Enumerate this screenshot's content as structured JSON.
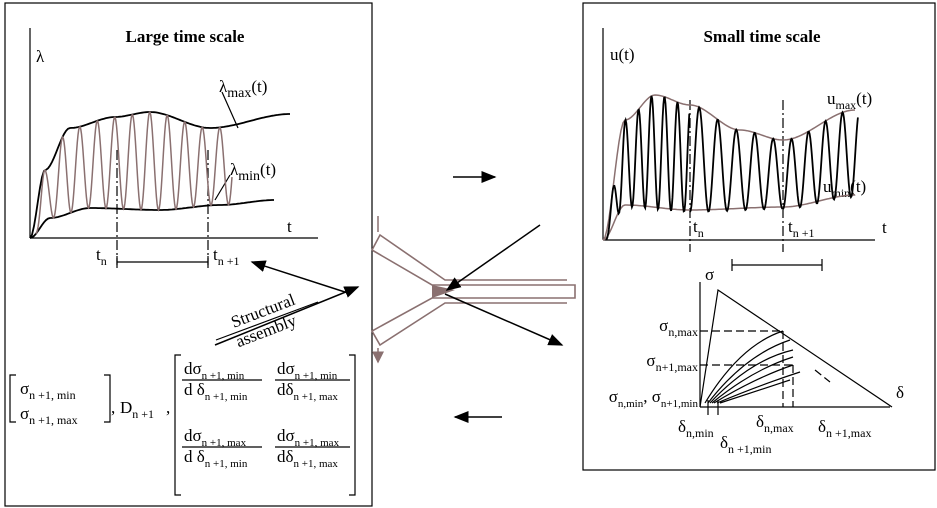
{
  "left_panel": {
    "title": "Large time scale",
    "y_label": "λ",
    "x_label": "t",
    "lambda_max": {
      "base": "λ",
      "sub": "max",
      "rest": "(t)"
    },
    "lambda_min": {
      "base": "λ",
      "sub": "min",
      "rest": "(t)"
    },
    "t_n": {
      "base": "t",
      "sub": "n"
    },
    "t_n1": {
      "base": "t",
      "sub": "n +1"
    }
  },
  "assembly": {
    "line1": "Structural",
    "line2": "assembly"
  },
  "matrix": {
    "s_min": {
      "base": "σ",
      "sub": "n +1, min"
    },
    "s_max": {
      "base": "σ",
      "sub": "n +1, max"
    },
    "sep1": ",",
    "D": {
      "base": "D",
      "sub": "n +1"
    },
    "sep2": ",",
    "f11": {
      "num": {
        "base": "dσ",
        "sub": "n +1, min"
      },
      "den": {
        "base": "d δ",
        "sub": "n +1, min"
      }
    },
    "f12": {
      "num": {
        "base": "dσ",
        "sub": "n +1, min"
      },
      "den": {
        "base": "dδ",
        "sub": "n +1, max"
      }
    },
    "f21": {
      "num": {
        "base": "dσ",
        "sub": "n +1, max"
      },
      "den": {
        "base": "d δ",
        "sub": "n +1, min"
      }
    },
    "f22": {
      "num": {
        "base": "dσ",
        "sub": "n +1, max"
      },
      "den": {
        "base": "dδ",
        "sub": "n +1, max"
      }
    }
  },
  "right_panel": {
    "title": "Small time scale",
    "y_label": "u(t)",
    "x_label": "t",
    "u_max": {
      "base": "u",
      "sub": "max",
      "rest": "(t)"
    },
    "u_min": {
      "base": "u",
      "sub": "min",
      "rest": "(t)"
    },
    "t_n": {
      "base": "t",
      "sub": "n"
    },
    "t_n1": {
      "base": "t",
      "sub": "n +1"
    }
  },
  "traction": {
    "y_label": "σ",
    "x_label": "δ",
    "sigma_n_max": {
      "base": "σ",
      "sub": "n,max"
    },
    "sigma_n1_max": {
      "base": "σ",
      "sub": "n+1,max"
    },
    "sigma_min": {
      "base1": "σ",
      "sub1": "n,min",
      "sep": ", ",
      "base2": "σ",
      "sub2": "n+1,min"
    },
    "delta_n_min": {
      "base": "δ",
      "sub": "n,min"
    },
    "delta_n1_min": {
      "base": "δ",
      "sub": "n +1,min"
    },
    "delta_n_max": {
      "base": "δ",
      "sub": "n,max"
    },
    "delta_n1_max": {
      "base": "δ",
      "sub": "n +1,max"
    }
  }
}
